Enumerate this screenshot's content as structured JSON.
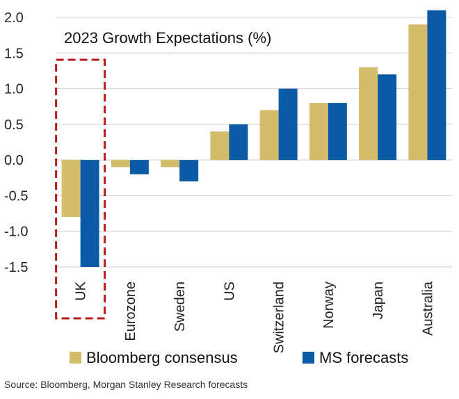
{
  "chart_data": {
    "type": "bar",
    "title": "2023 Growth Expectations (%)",
    "categories": [
      "UK",
      "Eurozone",
      "Sweden",
      "US",
      "Switzerland",
      "Norway",
      "Japan",
      "Australia"
    ],
    "series": [
      {
        "name": "Bloomberg consensus",
        "color": "#d4bc6a",
        "values": [
          -0.8,
          -0.1,
          -0.1,
          0.4,
          0.7,
          0.8,
          1.3,
          1.9
        ]
      },
      {
        "name": "MS forecasts",
        "color": "#0b5aa6",
        "values": [
          -1.5,
          -0.2,
          -0.3,
          0.5,
          1.0,
          0.8,
          1.2,
          2.1
        ]
      }
    ],
    "yticks": [
      "2.0",
      "1.5",
      "1.0",
      "0.5",
      "0.0",
      "-0.5",
      "-1.0",
      "-1.5"
    ],
    "ylim": [
      -1.5,
      2.0
    ],
    "grid": true,
    "legend_position": "bottom",
    "highlight": {
      "category": "UK",
      "style": "dashed-box",
      "color": "#b81c1c"
    }
  },
  "source": "Source: Bloomberg, Morgan Stanley Research forecasts"
}
